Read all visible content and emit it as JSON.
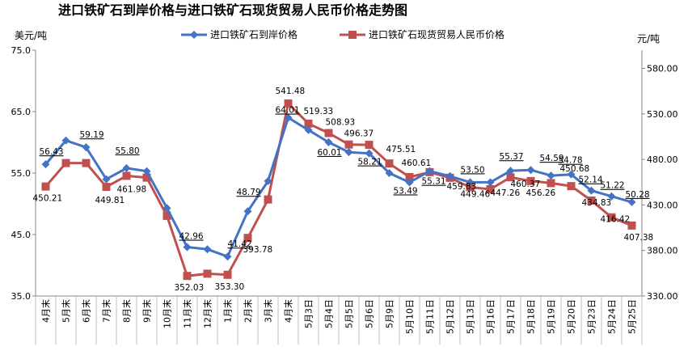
{
  "chart_data": {
    "type": "line",
    "title": "进口铁矿石到岸价格与进口铁矿石现货贸易人民币价格走势图",
    "y_left_unit": "美元/吨",
    "y_right_unit": "元/吨",
    "y_left_range": [
      35.0,
      75.0
    ],
    "y_left_ticks": [
      "35.0",
      "45.0",
      "55.0",
      "65.0",
      "75.0"
    ],
    "y_right_range": [
      330,
      600
    ],
    "y_right_ticks": [
      "330.00",
      "380.00",
      "430.00",
      "480.00",
      "530.00",
      "580.00"
    ],
    "legend_position": "top",
    "categories": [
      "4月末",
      "5月末",
      "6月末",
      "7月末",
      "8月末",
      "9月末",
      "10月末",
      "11月末",
      "12月末",
      "1月末",
      "2月末",
      "3月末",
      "4月末",
      "5月3日",
      "5月4日",
      "5月5日",
      "5月6日",
      "5月9日",
      "5月10日",
      "5月11日",
      "5月12日",
      "5月13日",
      "5月16日",
      "5月17日",
      "5月18日",
      "5月19日",
      "5月20日",
      "5月23日",
      "5月24日",
      "5月25日"
    ],
    "series": [
      {
        "name": "进口铁矿石到岸价格",
        "axis": "left",
        "color": "#4472c4",
        "marker": "diamond",
        "values": [
          56.43,
          60.3,
          59.19,
          54.0,
          55.8,
          55.3,
          49.3,
          42.96,
          42.6,
          41.42,
          48.79,
          53.7,
          64.01,
          62.0,
          60.01,
          58.4,
          58.21,
          55.0,
          53.49,
          55.31,
          54.5,
          53.5,
          53.5,
          55.37,
          55.5,
          54.59,
          54.78,
          52.14,
          51.22,
          50.28
        ],
        "labels": {
          "0": "56.43",
          "2": "59.19",
          "4": "55.80",
          "7": "42.96",
          "9": "41.42",
          "10": "48.79",
          "12": "64.01",
          "14": "60.01",
          "16": "58.21",
          "18": "53.49",
          "19": "55.31",
          "21": "53.50",
          "23": "55.37",
          "25": "54.59",
          "26": "54.78",
          "27": "52.14",
          "28": "51.22",
          "29": "50.28"
        }
      },
      {
        "name": "进口铁矿石现货贸易人民币价格",
        "axis": "right",
        "color": "#c0504d",
        "marker": "square",
        "values": [
          450.21,
          476.0,
          476.0,
          449.81,
          461.98,
          460.0,
          418.0,
          352.03,
          354.5,
          353.3,
          393.78,
          436.0,
          541.48,
          519.33,
          508.93,
          496.37,
          496.0,
          475.51,
          460.61,
          466.0,
          459.83,
          449.46,
          447.26,
          460.37,
          456.26,
          454.0,
          450.68,
          434.83,
          416.42,
          407.38
        ],
        "labels": {
          "0": "450.21",
          "3": "449.81",
          "4": "461.98",
          "7": "352.03",
          "9": "353.30",
          "10": "393.78",
          "12": "541.48",
          "13": "519.33",
          "14": "508.93",
          "15": "496.37",
          "17": "475.51",
          "18": "460.61",
          "20": "459.83",
          "21": "449.46",
          "22": "447.26",
          "23": "460.37",
          "24": "456.26",
          "26": "450.68",
          "27": "434.83",
          "28": "416.42",
          "29": "407.38"
        }
      }
    ]
  }
}
